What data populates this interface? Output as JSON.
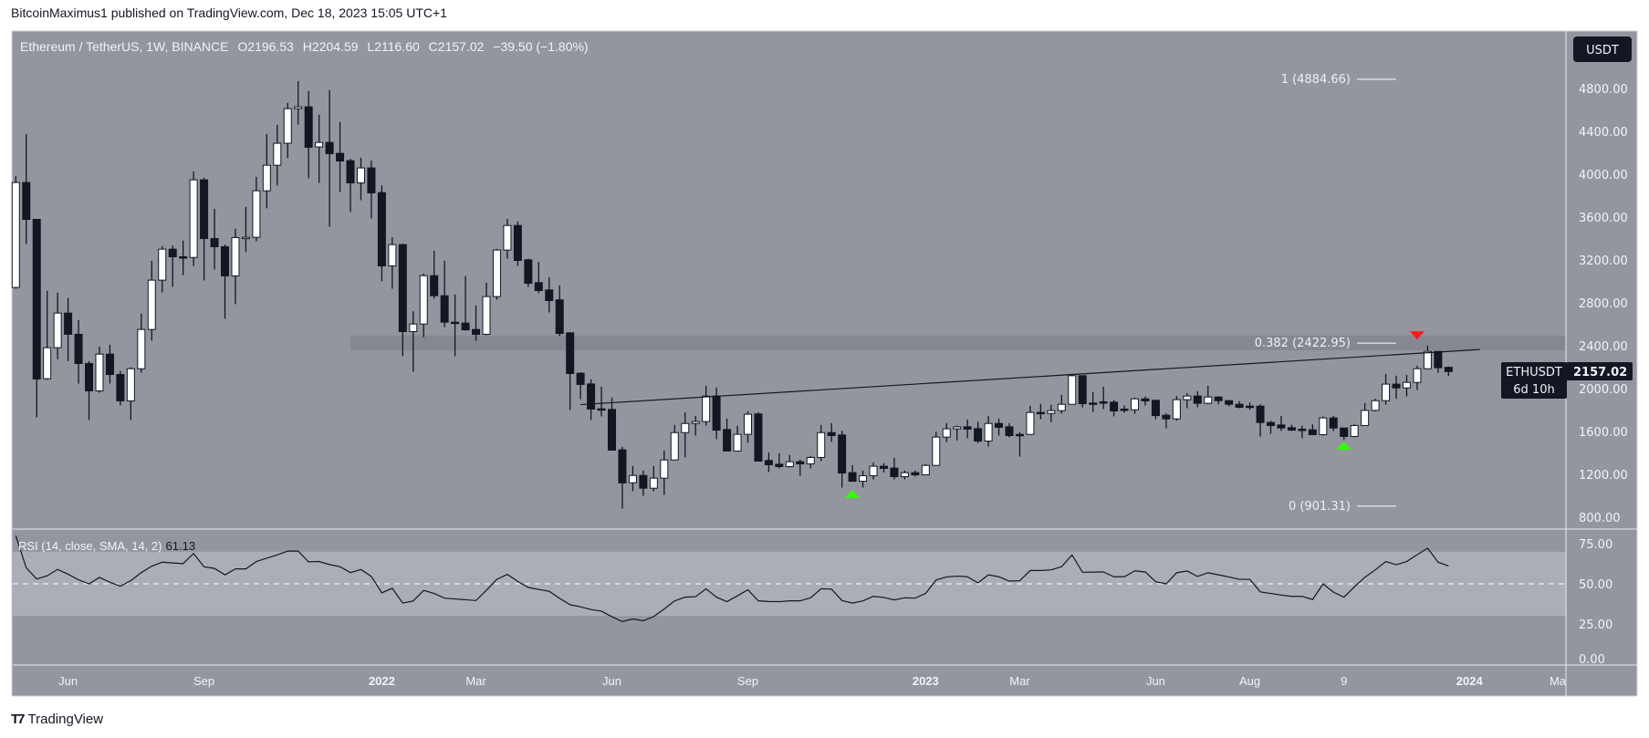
{
  "publish_line": "BitcoinMaximus1 published on TradingView.com, Dec 18, 2023 15:05 UTC+1",
  "legend": {
    "symbol": "Ethereum / TetherUS, 1W, BINANCE",
    "o_label": "O",
    "o": "2196.53",
    "h_label": "H",
    "h": "2204.59",
    "l_label": "L",
    "l": "2116.60",
    "c_label": "C",
    "c": "2157.02",
    "change": "−39.50 (−1.80%)"
  },
  "currency_button": "USDT",
  "price_tag": {
    "symbol": "ETHUSDT",
    "price": "2157.02",
    "countdown": "6d 10h"
  },
  "rsi_legend": {
    "label": "RSI (14, close, SMA, 14, 2)",
    "value": "61.13"
  },
  "logo_text": "TradingView",
  "colors": {
    "chart_bg": "#93969f",
    "up_body": "#ffffff",
    "down_body": "#131722",
    "zone": "#858791",
    "rsi_band": "#abaeb6",
    "green_marker": "#33ff00",
    "red_marker": "#ff1a1a"
  },
  "chart_data": {
    "type": "candlestick",
    "interval": "1W",
    "start_date": "2021-05-03",
    "ylim": [
      800,
      4800
    ],
    "price_ticks": [
      "4800.00",
      "4400.00",
      "4000.00",
      "3600.00",
      "3200.00",
      "2800.00",
      "2400.00",
      "2000.00",
      "1600.00",
      "1200.00",
      "800.00"
    ],
    "price_tick_values": [
      4800,
      4400,
      4000,
      3600,
      3200,
      2800,
      2400,
      2000,
      1600,
      1200,
      800
    ],
    "time_ticks": [
      {
        "label": "Jun",
        "date": "2021-06-07",
        "bold": false
      },
      {
        "label": "Sep",
        "date": "2021-09-06",
        "bold": false
      },
      {
        "label": "2022",
        "date": "2022-01-03",
        "bold": true
      },
      {
        "label": "Mar",
        "date": "2022-03-07",
        "bold": false
      },
      {
        "label": "Jun",
        "date": "2022-06-06",
        "bold": false
      },
      {
        "label": "Sep",
        "date": "2022-09-05",
        "bold": false
      },
      {
        "label": "2023",
        "date": "2023-01-02",
        "bold": true
      },
      {
        "label": "Mar",
        "date": "2023-03-06",
        "bold": false
      },
      {
        "label": "Jun",
        "date": "2023-06-05",
        "bold": false
      },
      {
        "label": "Aug",
        "date": "2023-08-07",
        "bold": false
      },
      {
        "label": "9",
        "date": "2023-10-09",
        "bold": false
      },
      {
        "label": "2024",
        "date": "2024-01-01",
        "bold": true
      },
      {
        "label": "Ma",
        "date": "2024-03-04",
        "bold": false
      }
    ],
    "ohlc": [
      [
        2942,
        3980,
        2930,
        3921
      ],
      [
        3921,
        4374,
        3348,
        3577
      ],
      [
        3577,
        3580,
        1730,
        2088
      ],
      [
        2091,
        2911,
        2080,
        2380
      ],
      [
        2380,
        2894,
        2272,
        2703
      ],
      [
        2703,
        2843,
        2255,
        2505
      ],
      [
        2505,
        2638,
        2045,
        2233
      ],
      [
        2233,
        2255,
        1705,
        1977
      ],
      [
        1977,
        2391,
        1960,
        2320
      ],
      [
        2320,
        2408,
        2045,
        2130
      ],
      [
        2130,
        2164,
        1841,
        1884
      ],
      [
        1884,
        2196,
        1705,
        2184
      ],
      [
        2184,
        2698,
        2147,
        2550
      ],
      [
        2550,
        3191,
        2445,
        3010
      ],
      [
        3010,
        3328,
        2896,
        3299
      ],
      [
        3299,
        3333,
        2947,
        3228
      ],
      [
        3228,
        3379,
        3058,
        3222
      ],
      [
        3222,
        4025,
        3143,
        3946
      ],
      [
        3946,
        3966,
        3007,
        3398
      ],
      [
        3398,
        3676,
        3109,
        3322
      ],
      [
        3322,
        3342,
        2650,
        3050
      ],
      [
        3050,
        3489,
        2786,
        3407
      ],
      [
        3407,
        3694,
        3271,
        3410
      ],
      [
        3410,
        3975,
        3373,
        3844
      ],
      [
        3844,
        4374,
        3680,
        4082
      ],
      [
        4082,
        4460,
        3892,
        4287
      ],
      [
        4287,
        4664,
        4147,
        4610
      ],
      [
        4610,
        4868,
        4462,
        4627
      ],
      [
        4627,
        4775,
        3960,
        4250
      ],
      [
        4253,
        4553,
        3918,
        4295
      ],
      [
        4295,
        4783,
        3509,
        4190
      ],
      [
        4193,
        4485,
        3833,
        4122
      ],
      [
        4125,
        4142,
        3645,
        3918
      ],
      [
        3918,
        4153,
        3756,
        4057
      ],
      [
        4057,
        4125,
        3586,
        3824
      ],
      [
        3827,
        3895,
        3000,
        3143
      ],
      [
        3143,
        3410,
        2930,
        3342
      ],
      [
        3342,
        3350,
        2300,
        2530
      ],
      [
        2530,
        2720,
        2156,
        2601
      ],
      [
        2601,
        3072,
        2479,
        3052
      ],
      [
        3052,
        3285,
        2837,
        2865
      ],
      [
        2865,
        3191,
        2573,
        2618
      ],
      [
        2618,
        2877,
        2300,
        2615
      ],
      [
        2610,
        3047,
        2539,
        2547
      ],
      [
        2550,
        2774,
        2445,
        2505
      ],
      [
        2505,
        2987,
        2496,
        2857
      ],
      [
        2857,
        3302,
        2828,
        3291
      ],
      [
        3291,
        3583,
        3211,
        3520
      ],
      [
        3520,
        3557,
        3143,
        3194
      ],
      [
        3200,
        3210,
        2947,
        2981
      ],
      [
        2987,
        3180,
        2888,
        2913
      ],
      [
        2919,
        3038,
        2709,
        2820
      ],
      [
        2826,
        2962,
        2488,
        2513
      ],
      [
        2519,
        2525,
        1798,
        2139
      ],
      [
        2142,
        2150,
        1900,
        2037
      ],
      [
        2042,
        2085,
        1705,
        1807
      ],
      [
        1810,
        2017,
        1739,
        1807
      ],
      [
        1804,
        1915,
        1420,
        1424
      ],
      [
        1427,
        1455,
        879,
        1118
      ],
      [
        1120,
        1276,
        1041,
        1188
      ],
      [
        1188,
        1234,
        998,
        1069
      ],
      [
        1069,
        1276,
        1041,
        1163
      ],
      [
        1163,
        1421,
        1007,
        1333
      ],
      [
        1333,
        1659,
        1333,
        1588
      ],
      [
        1588,
        1776,
        1356,
        1673
      ],
      [
        1673,
        1744,
        1560,
        1691
      ],
      [
        1691,
        2025,
        1654,
        1929
      ],
      [
        1929,
        2008,
        1526,
        1611
      ],
      [
        1617,
        1719,
        1416,
        1416
      ],
      [
        1416,
        1651,
        1416,
        1572
      ],
      [
        1572,
        1787,
        1492,
        1759
      ],
      [
        1762,
        1779,
        1322,
        1322
      ],
      [
        1328,
        1404,
        1220,
        1288
      ],
      [
        1293,
        1396,
        1254,
        1271
      ],
      [
        1271,
        1379,
        1262,
        1316
      ],
      [
        1316,
        1336,
        1186,
        1296
      ],
      [
        1296,
        1370,
        1254,
        1356
      ],
      [
        1356,
        1659,
        1322,
        1588
      ],
      [
        1588,
        1676,
        1501,
        1560
      ],
      [
        1566,
        1605,
        1075,
        1211
      ],
      [
        1214,
        1285,
        1134,
        1134
      ],
      [
        1134,
        1234,
        1075,
        1186
      ],
      [
        1186,
        1310,
        1152,
        1274
      ],
      [
        1274,
        1302,
        1217,
        1254
      ],
      [
        1257,
        1353,
        1152,
        1177
      ],
      [
        1177,
        1234,
        1152,
        1214
      ],
      [
        1214,
        1234,
        1177,
        1194
      ],
      [
        1194,
        1293,
        1194,
        1282
      ],
      [
        1282,
        1597,
        1282,
        1546
      ],
      [
        1546,
        1676,
        1498,
        1623
      ],
      [
        1623,
        1654,
        1515,
        1642
      ],
      [
        1642,
        1710,
        1535,
        1620
      ],
      [
        1625,
        1690,
        1489,
        1509
      ],
      [
        1509,
        1744,
        1458,
        1673
      ],
      [
        1673,
        1719,
        1560,
        1637
      ],
      [
        1642,
        1676,
        1543,
        1560
      ],
      [
        1571,
        1591,
        1364,
        1566
      ],
      [
        1571,
        1838,
        1571,
        1776
      ],
      [
        1776,
        1855,
        1713,
        1773
      ],
      [
        1767,
        1847,
        1685,
        1793
      ],
      [
        1793,
        1940,
        1764,
        1852
      ],
      [
        1852,
        2136,
        1852,
        2119
      ],
      [
        2119,
        2119,
        1824,
        1858
      ],
      [
        1864,
        1966,
        1781,
        1858
      ],
      [
        1875,
        2017,
        1807,
        1869
      ],
      [
        1872,
        1892,
        1739,
        1790
      ],
      [
        1807,
        1841,
        1773,
        1801
      ],
      [
        1801,
        1915,
        1764,
        1903
      ],
      [
        1903,
        1926,
        1841,
        1884
      ],
      [
        1889,
        1895,
        1713,
        1747
      ],
      [
        1750,
        1767,
        1628,
        1716
      ],
      [
        1716,
        1929,
        1699,
        1895
      ],
      [
        1895,
        1957,
        1815,
        1929
      ],
      [
        1929,
        1974,
        1824,
        1861
      ],
      [
        1861,
        2025,
        1852,
        1920
      ],
      [
        1920,
        1926,
        1852,
        1886
      ],
      [
        1886,
        1892,
        1832,
        1852
      ],
      [
        1852,
        1881,
        1815,
        1824
      ],
      [
        1835,
        1869,
        1801,
        1824
      ],
      [
        1835,
        1852,
        1552,
        1682
      ],
      [
        1682,
        1699,
        1577,
        1654
      ],
      [
        1659,
        1744,
        1603,
        1631
      ],
      [
        1634,
        1662,
        1603,
        1611
      ],
      [
        1620,
        1654,
        1535,
        1614
      ],
      [
        1614,
        1665,
        1569,
        1569
      ],
      [
        1569,
        1739,
        1560,
        1725
      ],
      [
        1725,
        1744,
        1603,
        1631
      ],
      [
        1631,
        1631,
        1518,
        1552
      ],
      [
        1552,
        1665,
        1546,
        1654
      ],
      [
        1654,
        1864,
        1654,
        1795
      ],
      [
        1795,
        1903,
        1784,
        1886
      ],
      [
        1886,
        2136,
        1849,
        2040
      ],
      [
        2040,
        2119,
        1903,
        2005
      ],
      [
        2005,
        2127,
        1926,
        2056
      ],
      [
        2056,
        2213,
        1986,
        2184
      ],
      [
        2184,
        2400,
        2184,
        2346
      ],
      [
        2346,
        2346,
        2147,
        2193
      ],
      [
        2196.53,
        2204.59,
        2116.6,
        2157.02
      ]
    ],
    "fib_levels": [
      {
        "label": "1 (4884.66)",
        "price": 4884.66
      },
      {
        "label": "0.382 (2422.95)",
        "price": 2422.95
      },
      {
        "label": "0 (901.31)",
        "price": 901.31
      }
    ],
    "resistance_zone": {
      "from_date": "2021-12-13",
      "price_low": 2357,
      "price_high": 2494
    },
    "trendline": {
      "start_date": "2022-05-16",
      "start_price": 1849,
      "end_date": "2024-01-08",
      "end_price": 2363
    },
    "markers": [
      {
        "type": "up-triangle",
        "date": "2022-11-14",
        "price": 1020,
        "color": "#33ff00"
      },
      {
        "type": "up-triangle",
        "date": "2023-10-09",
        "price": 1470,
        "color": "#33ff00"
      },
      {
        "type": "down-triangle",
        "date": "2023-11-27",
        "price": 2490,
        "color": "#ff1a1a"
      }
    ],
    "rsi": {
      "ylim": [
        0,
        80
      ],
      "ticks": [
        "75.00",
        "50.00",
        "25.00",
        "0.00"
      ],
      "tick_values": [
        75,
        50,
        25,
        0
      ],
      "band": [
        30,
        70
      ],
      "midline": 50,
      "values": [
        80,
        60,
        53,
        55,
        59,
        56,
        52.5,
        50,
        54,
        51,
        48.5,
        52,
        57,
        61,
        63.5,
        63,
        62.6,
        68.9,
        60.6,
        59.6,
        55.6,
        59.3,
        59.3,
        63.9,
        66,
        68,
        70.4,
        70.4,
        63.7,
        63.9,
        62,
        60.7,
        57,
        58.9,
        54.6,
        44.4,
        47.2,
        38,
        39.3,
        45.9,
        44,
        41.1,
        40.6,
        40.1,
        39.6,
        46,
        52.8,
        55.9,
        51.5,
        47.8,
        46.5,
        45.4,
        41,
        37,
        35.7,
        34,
        33,
        29.5,
        26.5,
        28.1,
        27,
        29.6,
        34.3,
        39.4,
        41.7,
        42,
        46.9,
        41.7,
        38.9,
        42.5,
        46.3,
        39.4,
        39,
        38.9,
        39.4,
        39.4,
        41.3,
        46.9,
        46.7,
        39.6,
        38,
        39.4,
        42.2,
        41.5,
        40,
        41.3,
        41.1,
        44,
        52.4,
        54.3,
        54.8,
        54.4,
        50.6,
        55.6,
        54.4,
        51.7,
        51.9,
        58.3,
        58.3,
        58.7,
        60.7,
        68,
        57.2,
        57.3,
        57.4,
        54.4,
        54.4,
        58.1,
        57.4,
        51.3,
        50,
        56.9,
        58,
        54.6,
        56.9,
        55.6,
        54.3,
        52.8,
        52.8,
        45,
        44,
        43,
        42.2,
        42.2,
        40.2,
        50,
        44.8,
        41.7,
        48.1,
        54.1,
        58.7,
        63.9,
        61.9,
        63.9,
        68.1,
        72.2,
        63.5,
        61.13
      ]
    }
  }
}
